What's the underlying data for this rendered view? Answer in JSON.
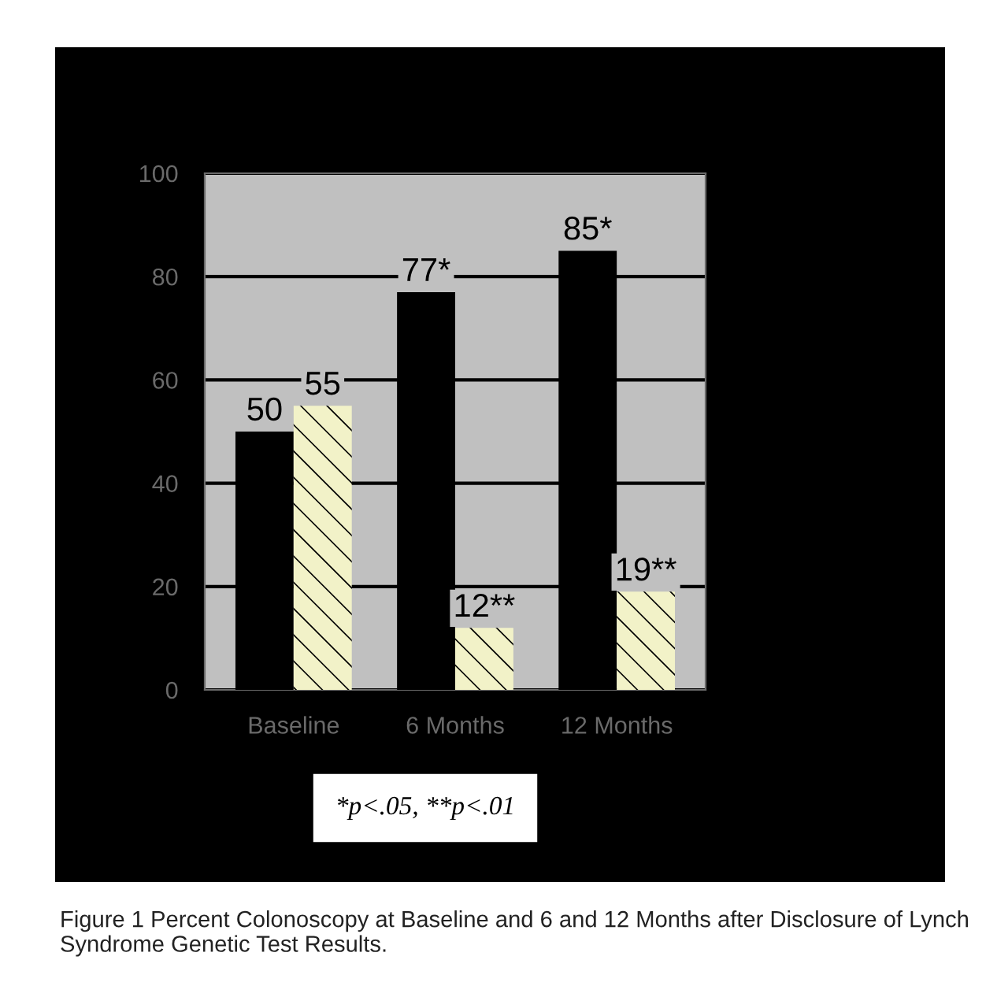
{
  "chart_data": {
    "type": "bar",
    "categories": [
      "Baseline",
      "6 Months",
      "12 Months"
    ],
    "series": [
      {
        "color": "#000000",
        "values": [
          50,
          77,
          85
        ],
        "value_labels": [
          "50",
          "77*",
          "85*"
        ]
      },
      {
        "color": "#f2f2c8",
        "values": [
          55,
          12,
          19
        ],
        "value_labels": [
          "55",
          "12**",
          "19**"
        ]
      }
    ],
    "ylim": [
      0,
      100
    ],
    "yticks": [
      0,
      20,
      40,
      60,
      80,
      100
    ],
    "grid": "y",
    "legend": false,
    "annotations": [
      "*p<.05, **p<.01",
      "Figure 1 Percent Colonoscopy at Baseline and 6 and 12 Months after Disclosure of Lynch Syndrome Genetic Test Results."
    ]
  }
}
